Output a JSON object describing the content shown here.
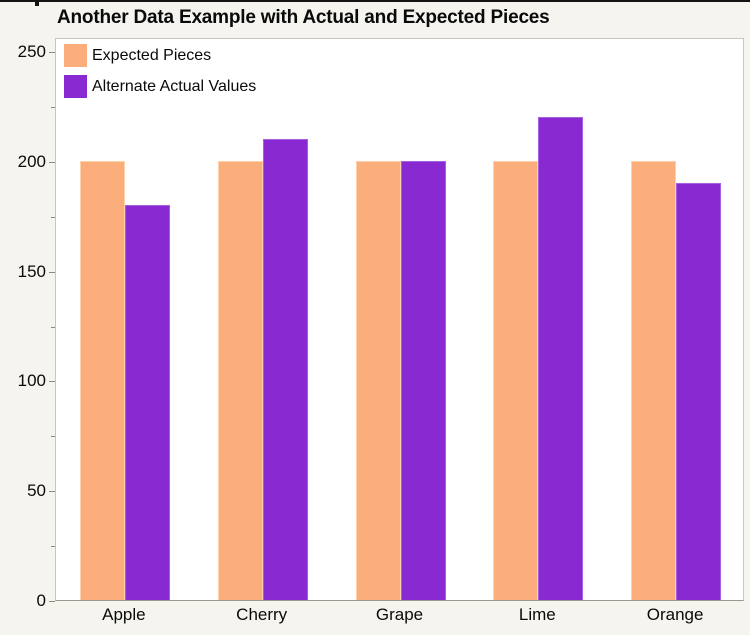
{
  "window": {
    "top_divider": "outline-edge"
  },
  "chart_data": {
    "type": "bar",
    "title": "Another Data Example with Actual and Expected Pieces",
    "categories": [
      "Apple",
      "Cherry",
      "Grape",
      "Lime",
      "Orange"
    ],
    "series": [
      {
        "name": "Expected Pieces",
        "color": "#fbae7c",
        "edge_color": "#fdd2ab",
        "values": [
          200,
          200,
          200,
          200,
          200
        ]
      },
      {
        "name": "Alternate Actual Values",
        "color": "#8829d2",
        "edge_color": "#a55fe0",
        "values": [
          180,
          210,
          200,
          220,
          190
        ]
      }
    ],
    "xlabel": "",
    "ylabel": "",
    "ylim": [
      0,
      250
    ],
    "yticks": [
      0,
      50,
      100,
      150,
      200,
      250
    ],
    "yticks_minor": [
      25,
      75,
      125,
      175,
      225
    ],
    "grid": false,
    "legend_position": "top-left-inside",
    "colors": {
      "page_background": "#f5f4ef",
      "plot_background": "#ffffff",
      "frame": "#c7c7c0",
      "axis_line": "#98988f",
      "tick": "#8a8a85",
      "text": "#0a0a0a"
    }
  }
}
